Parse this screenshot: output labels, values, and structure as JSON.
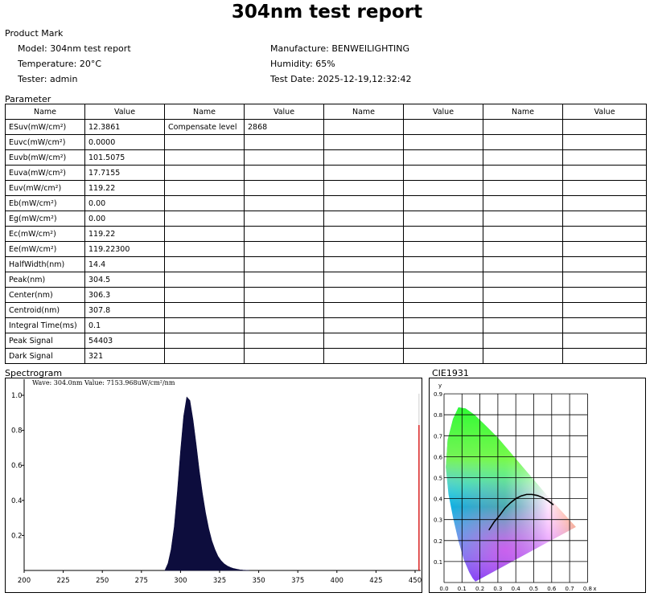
{
  "report": {
    "title": "304nm test report",
    "product_mark_label": "Product Mark",
    "model": "Model: 304nm test report",
    "temperature": "Temperature: 20°C",
    "tester": "Tester: admin",
    "manufacture": "Manufacture: BENWEILIGHTING",
    "humidity": "Humidity: 65%",
    "test_date": "Test Date: 2025-12-19,12:32:42"
  },
  "parameter": {
    "label": "Parameter",
    "headers": [
      "Name",
      "Value",
      "Name",
      "Value",
      "Name",
      "Value",
      "Name",
      "Value"
    ],
    "rows": [
      [
        "ESuv(mW/cm²)",
        "12.3861",
        "Compensate level",
        "2868"
      ],
      [
        "Euvc(mW/cm²)",
        "0.0000",
        "",
        ""
      ],
      [
        "Euvb(mW/cm²)",
        "101.5075",
        "",
        ""
      ],
      [
        "Euva(mW/cm²)",
        "17.7155",
        "",
        ""
      ],
      [
        "Euv(mW/cm²)",
        "119.22",
        "",
        ""
      ],
      [
        "Eb(mW/cm²)",
        "0.00",
        "",
        ""
      ],
      [
        "Eg(mW/cm²)",
        "0.00",
        "",
        ""
      ],
      [
        "Ec(mW/cm²)",
        "119.22",
        "",
        ""
      ],
      [
        "Ee(mW/cm²)",
        "119.22300",
        "",
        ""
      ],
      [
        "HalfWidth(nm)",
        "14.4",
        "",
        ""
      ],
      [
        "Peak(nm)",
        "304.5",
        "",
        ""
      ],
      [
        "Center(nm)",
        "306.3",
        "",
        ""
      ],
      [
        "Centroid(nm)",
        "307.8",
        "",
        ""
      ],
      [
        "Integral Time(ms)",
        "0.1",
        "",
        ""
      ],
      [
        "Peak Signal",
        "54403",
        "",
        ""
      ],
      [
        "Dark Signal",
        "321",
        "",
        ""
      ]
    ]
  },
  "spectrogram": {
    "label": "Spectrogram",
    "annotation": "Wave: 304.0nm Value: 7153.968uW/cm²/nm",
    "fill_color": "#0d0d3d",
    "marker_color": "#d40000"
  },
  "cie": {
    "label": "CIE1931",
    "x_axis_label": "x",
    "y_axis_label": "y",
    "x_ticks": [
      "0.0",
      "0.1",
      "0.2",
      "0.3",
      "0.4",
      "0.5",
      "0.6",
      "0.7",
      "0.8"
    ],
    "y_ticks": [
      "0.9",
      "0.8",
      "0.7",
      "0.6",
      "0.5",
      "0.4",
      "0.3",
      "0.2",
      "0.1"
    ]
  },
  "chart_data": [
    {
      "type": "area",
      "x_ticks": [
        200,
        225,
        250,
        275,
        300,
        325,
        350,
        375,
        400,
        425,
        450
      ],
      "y_ticks": [
        0.2,
        0.4,
        0.6,
        0.8,
        1.0
      ],
      "xlim": [
        200,
        454
      ],
      "ylim": [
        0,
        1.05
      ],
      "peak_x": 304.5,
      "marker": {
        "x": 452.5,
        "y": 0.83
      },
      "x": [
        290,
        292,
        294,
        296,
        298,
        300,
        302,
        304,
        306,
        308,
        310,
        312,
        314,
        316,
        318,
        320,
        322,
        324,
        326,
        328,
        330,
        332,
        334,
        336,
        338,
        340,
        342,
        344
      ],
      "values": [
        0.0,
        0.04,
        0.12,
        0.25,
        0.45,
        0.68,
        0.88,
        0.99,
        0.97,
        0.86,
        0.72,
        0.57,
        0.44,
        0.33,
        0.24,
        0.17,
        0.12,
        0.08,
        0.055,
        0.037,
        0.025,
        0.017,
        0.011,
        0.007,
        0.004,
        0.002,
        0.001,
        0.0
      ]
    },
    {
      "type": "scatter",
      "xlim": [
        0,
        0.8
      ],
      "ylim": [
        0,
        0.9
      ],
      "planckian_locus": {
        "x": [
          0.25,
          0.28,
          0.31,
          0.34,
          0.37,
          0.4,
          0.43,
          0.46,
          0.49,
          0.52,
          0.55,
          0.58,
          0.61
        ],
        "y": [
          0.25,
          0.29,
          0.32,
          0.355,
          0.38,
          0.4,
          0.413,
          0.42,
          0.42,
          0.415,
          0.405,
          0.39,
          0.37
        ]
      }
    }
  ]
}
